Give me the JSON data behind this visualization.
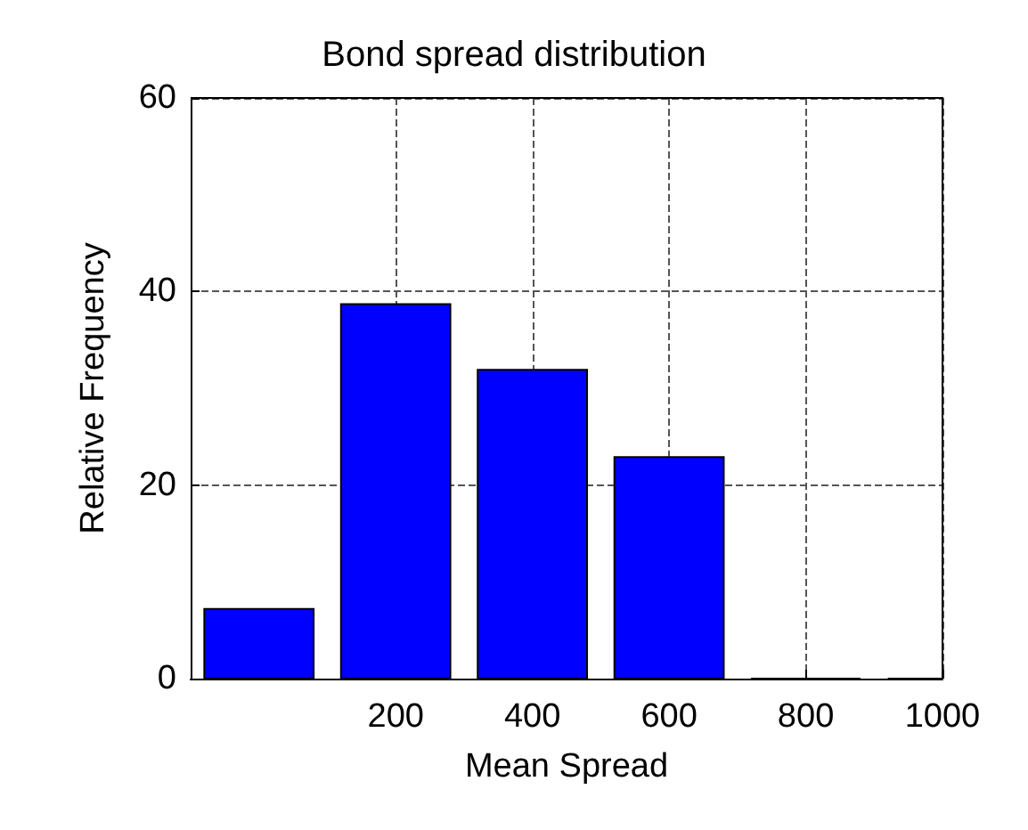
{
  "chart_data": {
    "type": "bar",
    "title": "Bond spread distribution",
    "xlabel": "Mean Spread",
    "ylabel": "Relative Frequency",
    "x": [
      0,
      200,
      400,
      600,
      800,
      1000
    ],
    "values": [
      7.2,
      38.7,
      31.9,
      22.9,
      0,
      0
    ],
    "color": "#0000ff",
    "xlim": [
      -100,
      1000
    ],
    "xticks": [
      200,
      400,
      600,
      800,
      1000
    ],
    "ylim": [
      0,
      60
    ],
    "yticks": [
      0,
      20,
      40,
      60
    ],
    "grid": true,
    "line_style": "dashed"
  }
}
